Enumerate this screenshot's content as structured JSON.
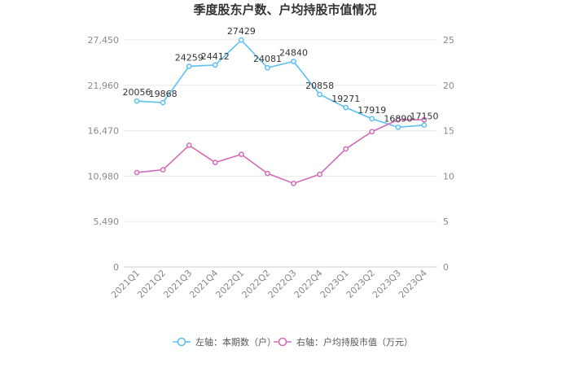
{
  "chart_data": {
    "type": "line",
    "title": "季度股东户数、户均持股市值情况",
    "categories": [
      "2021Q1",
      "2021Q2",
      "2021Q3",
      "2021Q4",
      "2022Q1",
      "2022Q2",
      "2022Q3",
      "2022Q4",
      "2023Q1",
      "2023Q2",
      "2023Q3",
      "2023Q4"
    ],
    "y_left": {
      "ticks": [
        "0",
        "5,490",
        "10,980",
        "16,470",
        "21,960",
        "27,450"
      ],
      "range": [
        0,
        27450
      ]
    },
    "y_right": {
      "ticks": [
        "0",
        "5",
        "10",
        "15",
        "20",
        "25"
      ],
      "range": [
        0,
        25
      ]
    },
    "grid": true,
    "legend_position": "bottom",
    "series": [
      {
        "name": "左轴：本期数（户）",
        "axis": "left",
        "color": "#5bc0f0",
        "values": [
          20056,
          19868,
          24259,
          24412,
          27429,
          24081,
          24840,
          20858,
          19271,
          17919,
          16890,
          17150
        ],
        "labels": [
          "20056",
          "19868",
          "24259",
          "24412",
          "27429",
          "24081",
          "24840",
          "20858",
          "19271",
          "17919",
          "16890",
          "17150"
        ]
      },
      {
        "name": "右轴：户均持股市值（万元）",
        "axis": "right",
        "color": "#d36bb6",
        "values": [
          10.4,
          10.7,
          13.4,
          11.5,
          12.4,
          10.3,
          9.2,
          10.2,
          13.0,
          14.9,
          16.2,
          16.2
        ]
      }
    ]
  }
}
